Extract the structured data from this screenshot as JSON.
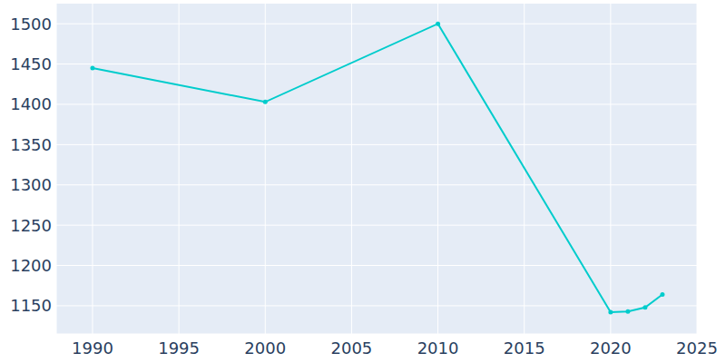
{
  "chart_data": {
    "type": "line",
    "x": [
      1990,
      2000,
      2010,
      2020,
      2021,
      2022,
      2023
    ],
    "values": [
      1445,
      1403,
      1500,
      1142,
      1143,
      1148,
      1164
    ],
    "color": "#00cccc",
    "marker": "circle",
    "xlim": [
      1987.9,
      2025
    ],
    "xticks": [
      1990,
      1995,
      2000,
      2005,
      2010,
      2015,
      2020,
      2025
    ],
    "ylim": [
      1115,
      1525
    ],
    "yticks": [
      1150,
      1200,
      1250,
      1300,
      1350,
      1400,
      1450,
      1500
    ],
    "grid": true
  }
}
